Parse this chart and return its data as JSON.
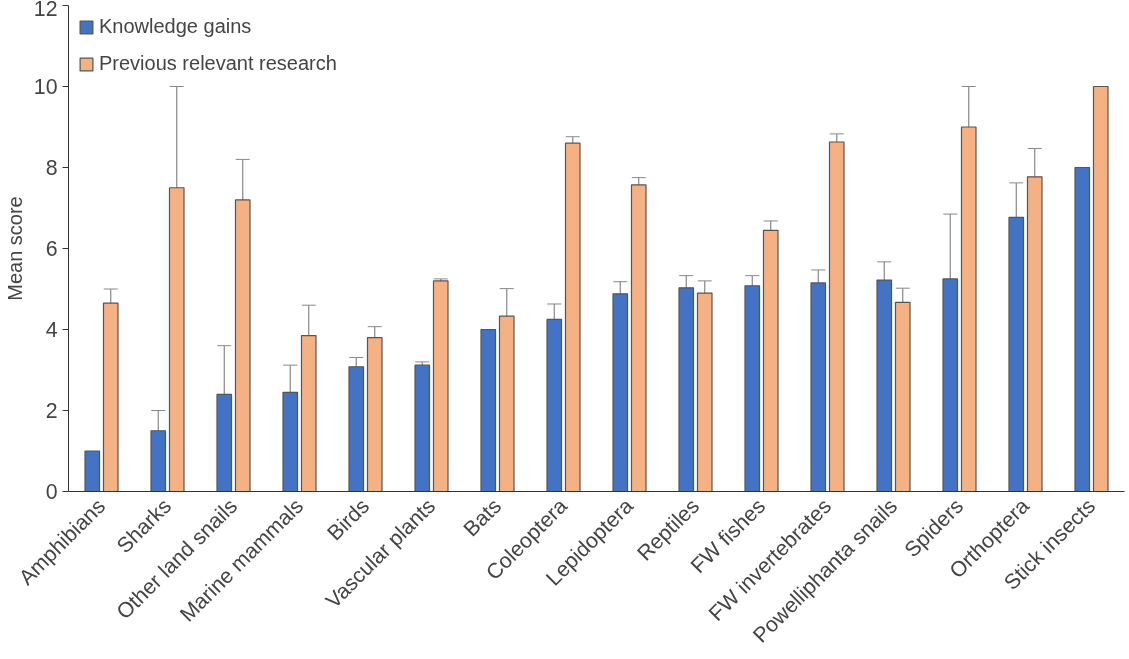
{
  "chart_data": {
    "type": "bar",
    "ylabel": "Mean score",
    "categories": [
      "Amphibians",
      "Sharks",
      "Other land snails",
      "Marine mammals",
      "Birds",
      "Vascular plants",
      "Bats",
      "Coleoptera",
      "Lepidoptera",
      "Reptiles",
      "FW fishes",
      "FW invertebrates",
      "Powelliphanta snails",
      "Spiders",
      "Orthoptera",
      "Stick insects"
    ],
    "series": [
      {
        "name": "Knowledge gains",
        "color": "#4472c4",
        "values": [
          1.0,
          1.5,
          2.4,
          2.45,
          3.08,
          3.12,
          4.0,
          4.25,
          4.88,
          5.03,
          5.08,
          5.15,
          5.22,
          5.25,
          6.77,
          8.0
        ],
        "errors": [
          null,
          0.5,
          1.2,
          0.67,
          0.23,
          0.08,
          null,
          0.38,
          0.3,
          0.3,
          0.25,
          0.32,
          0.45,
          1.6,
          0.85,
          null
        ]
      },
      {
        "name": "Previous relevant research",
        "color": "#f4b183",
        "values": [
          4.65,
          7.5,
          7.2,
          3.85,
          3.8,
          5.2,
          4.33,
          8.6,
          7.57,
          4.9,
          6.45,
          8.63,
          4.67,
          9.0,
          7.77,
          10.0
        ],
        "errors": [
          0.35,
          2.5,
          1.0,
          0.75,
          0.27,
          0.05,
          0.68,
          0.16,
          0.18,
          0.3,
          0.23,
          0.2,
          0.35,
          1.0,
          0.7,
          null
        ]
      }
    ],
    "ylim": [
      0,
      12
    ],
    "yticks": [
      0,
      2,
      4,
      6,
      8,
      10,
      12
    ],
    "grid": false,
    "legend": "top left"
  }
}
